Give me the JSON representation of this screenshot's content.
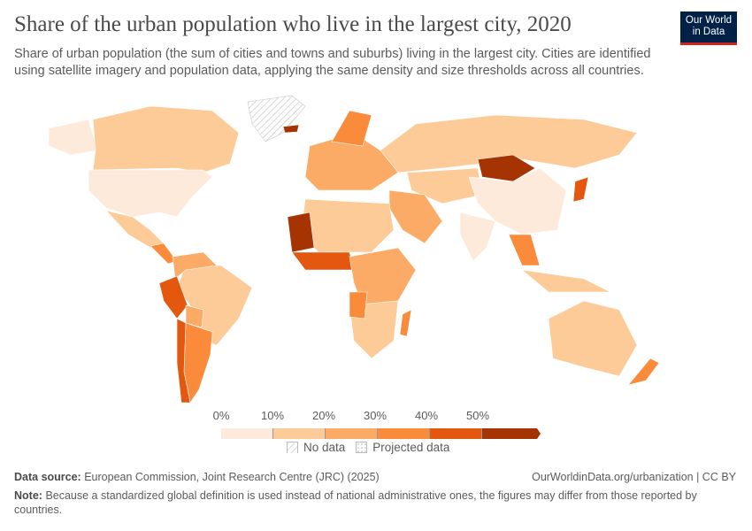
{
  "header": {
    "title": "Share of the urban population who live in the largest city, 2020",
    "subtitle": "Share of urban population (the sum of cities and towns and suburbs) living in the largest city. Cities are identified using satellite imagery and population data, applying the same density and size thresholds across all countries.",
    "logo": "Our World in Data"
  },
  "legend": {
    "ticks": [
      "0%",
      "10%",
      "20%",
      "30%",
      "40%",
      "50%"
    ],
    "colors": [
      "#feeadb",
      "#fdcb97",
      "#fcab67",
      "#f98b3b",
      "#e3570f",
      "#a63403"
    ],
    "no_data": "No data",
    "projected": "Projected data"
  },
  "footer": {
    "source_label": "Data source:",
    "source": "European Commission, Joint Research Centre (JRC) (2025)",
    "url": "OurWorldinData.org/urbanization | CC BY",
    "note_label": "Note:",
    "note": "Because a standardized global definition is used instead of national administrative ones, the figures may differ from those reported by countries."
  }
}
